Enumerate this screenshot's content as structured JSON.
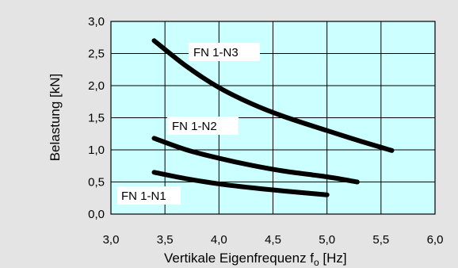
{
  "chart_data": {
    "type": "line",
    "xlabel_main": "Vertikale Eigenfrequenz f",
    "xlabel_sub": "o",
    "xlabel_unit": " [Hz]",
    "ylabel": "Belastung  [kN]",
    "xlim": [
      3.0,
      6.0
    ],
    "ylim": [
      0.0,
      3.0
    ],
    "x_ticks": [
      "3,0",
      "3,5",
      "4,0",
      "4,5",
      "5,0",
      "5,5",
      "6,0"
    ],
    "y_ticks": [
      "0,0",
      "0,5",
      "1,0",
      "1,5",
      "2,0",
      "2,5",
      "3,0"
    ],
    "grid": true,
    "plot_background": "#ccffff",
    "page_background": "#e4e4e4",
    "line_color": "#000000",
    "series": [
      {
        "name": "FN 1-N1",
        "x": [
          3.4,
          3.7,
          4.0,
          4.3,
          4.6,
          5.0
        ],
        "y": [
          0.65,
          0.55,
          0.47,
          0.41,
          0.36,
          0.3
        ]
      },
      {
        "name": "FN 1-N2",
        "x": [
          3.4,
          3.7,
          4.0,
          4.3,
          4.6,
          5.0,
          5.28
        ],
        "y": [
          1.18,
          1.0,
          0.87,
          0.76,
          0.67,
          0.58,
          0.5
        ]
      },
      {
        "name": "FN 1-N3",
        "x": [
          3.4,
          3.7,
          4.0,
          4.3,
          4.6,
          5.0,
          5.3,
          5.6
        ],
        "y": [
          2.7,
          2.3,
          1.97,
          1.72,
          1.52,
          1.3,
          1.14,
          0.99
        ]
      }
    ]
  }
}
